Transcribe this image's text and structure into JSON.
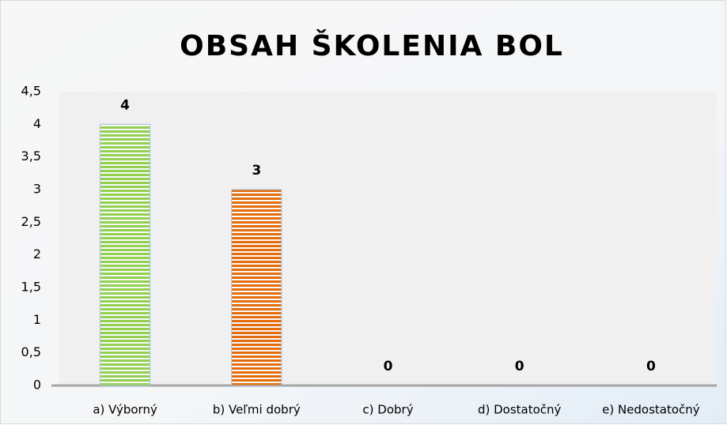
{
  "chart_data": {
    "type": "bar",
    "title": "OBSAH ŠKOLENIA BOL",
    "categories": [
      "a) Výborný",
      "b) Veľmi dobrý",
      "c) Dobrý",
      "d) Dostatočný",
      "e) Nedostatočný"
    ],
    "values": [
      4,
      3,
      0,
      0,
      0
    ],
    "colors": [
      "#92d050",
      "#e46c0a",
      "#4f81bd",
      "#4f81bd",
      "#4f81bd"
    ],
    "ylim": [
      0,
      4.5
    ],
    "yticks": [
      0,
      {
        "value": 0.5,
        "label": "0,5"
      },
      1,
      {
        "value": 1.5,
        "label": "1,5"
      },
      2,
      {
        "value": 2.5,
        "label": "2,5"
      },
      3,
      {
        "value": 3.5,
        "label": "3,5"
      },
      4,
      {
        "value": 4.5,
        "label": "4,5"
      }
    ],
    "grid": false
  }
}
